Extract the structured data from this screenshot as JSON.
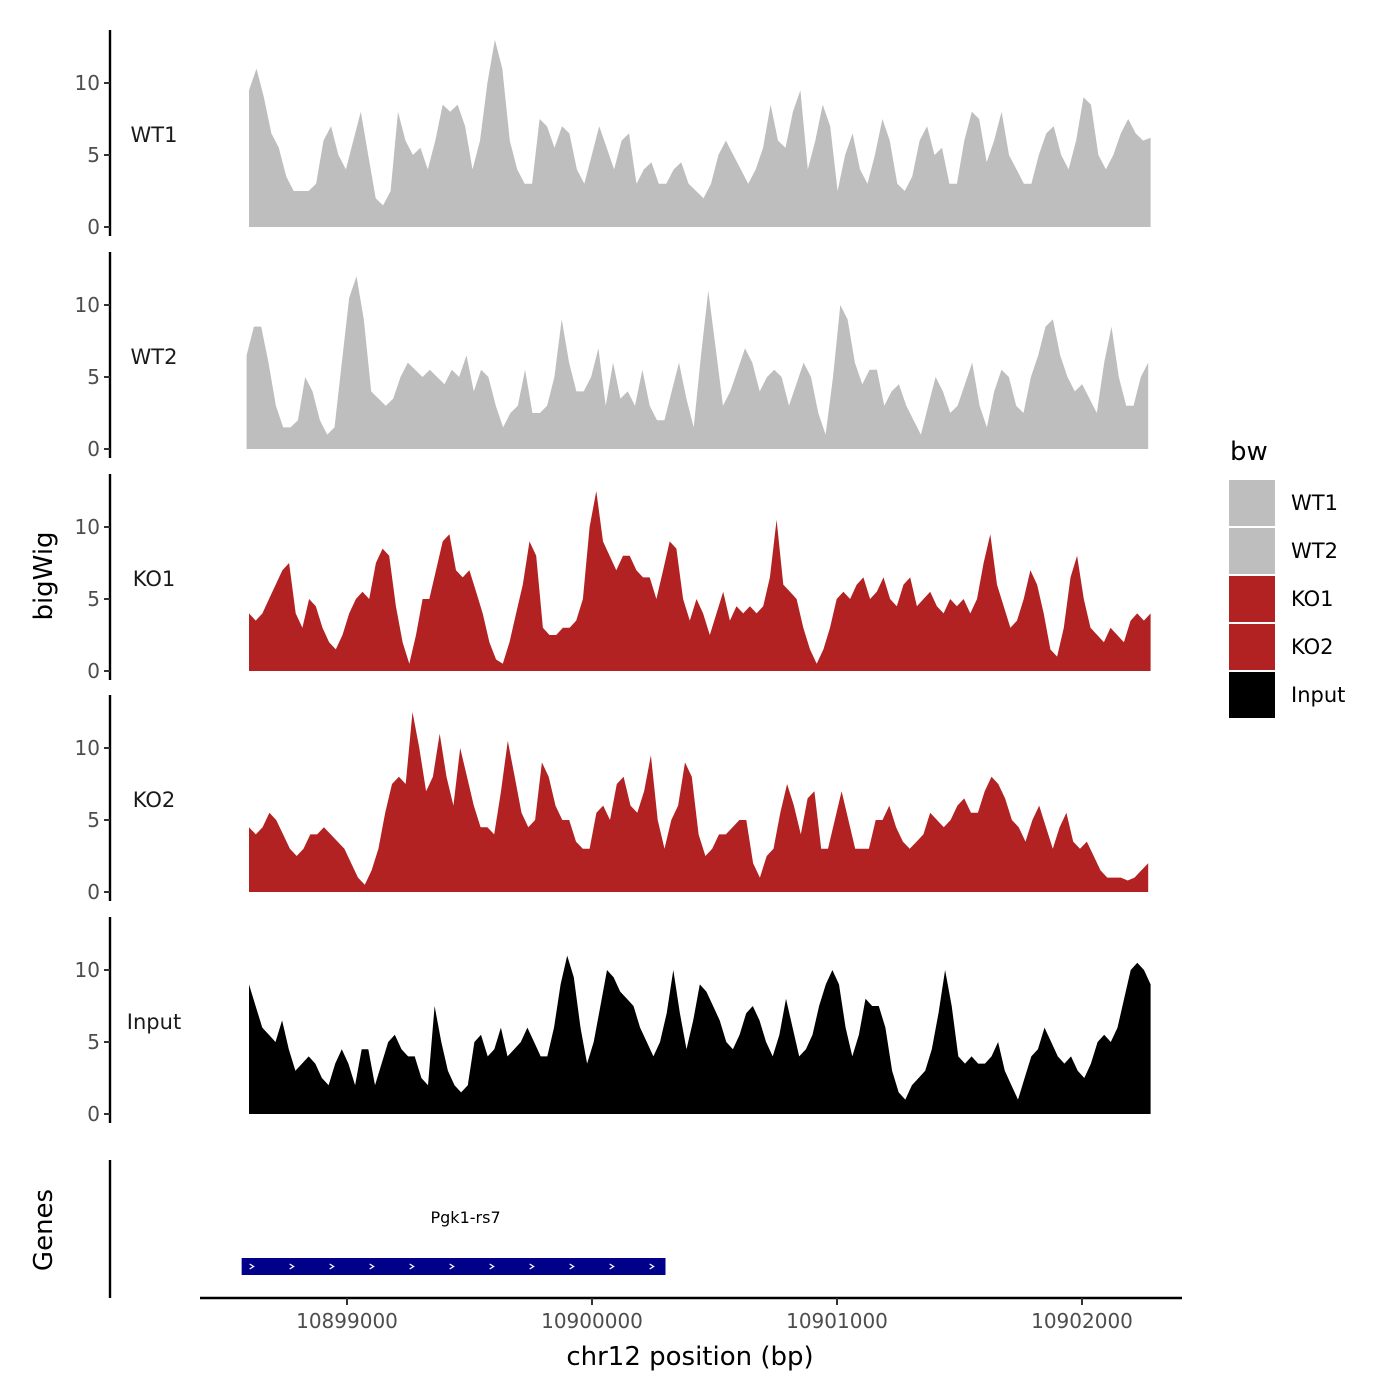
{
  "chart_data": {
    "type": "area",
    "title": "",
    "xlabel": "chr12 position (bp)",
    "ylabel": "bigWig",
    "genes_label": "Genes",
    "xlim": [
      10898400,
      10902400
    ],
    "ylim": [
      0,
      13.5
    ],
    "x_ticks": [
      10899000,
      10900000,
      10901000,
      10902000
    ],
    "x_tick_labels": [
      "10899000",
      "10900000",
      "10901000",
      "10902000"
    ],
    "y_ticks": [
      0,
      5,
      10
    ],
    "y_tick_labels": [
      "0",
      "5",
      "10"
    ],
    "grid": false,
    "legend": {
      "title": "bw",
      "position": "right",
      "entries": [
        {
          "name": "WT1",
          "color": "#bebebe"
        },
        {
          "name": "WT2",
          "color": "#bebebe"
        },
        {
          "name": "KO1",
          "color": "#b22222"
        },
        {
          "name": "KO2",
          "color": "#b22222"
        },
        {
          "name": "Input",
          "color": "#000000"
        }
      ]
    },
    "series": [
      {
        "name": "WT1",
        "color": "#bebebe",
        "x_start": 10898600,
        "x_end": 10902280,
        "values": [
          9.5,
          11,
          9,
          6.5,
          5.5,
          3.5,
          2.5,
          2.5,
          2.5,
          3,
          6,
          7,
          5,
          4,
          6,
          8,
          5,
          2,
          1.5,
          2.5,
          8,
          6,
          5,
          5.5,
          4,
          6,
          8.5,
          8,
          8.5,
          7,
          4,
          6,
          10,
          13,
          11,
          6,
          4,
          3,
          3,
          7.5,
          7,
          5.5,
          7,
          6.5,
          4,
          3,
          5,
          7,
          5.5,
          4,
          6,
          6.5,
          3,
          4,
          4.5,
          3,
          3,
          4,
          4.5,
          3,
          2.5,
          2,
          3,
          5,
          6,
          5,
          4,
          3,
          4,
          5.5,
          8.5,
          6,
          5.5,
          8,
          9.5,
          4,
          6,
          8.5,
          7,
          2.5,
          5,
          6.5,
          4,
          3,
          5,
          7.5,
          6,
          3,
          2.5,
          3.5,
          6,
          7,
          5,
          5.5,
          3,
          3,
          6,
          8,
          7.5,
          4.5,
          6,
          8,
          5,
          4,
          3,
          3,
          5,
          6.5,
          7,
          5,
          4,
          6,
          9,
          8.5,
          5,
          4,
          5,
          6.5,
          7.5,
          6.5,
          6,
          6.2
        ]
      },
      {
        "name": "WT2",
        "color": "#bebebe",
        "x_start": 10898590,
        "x_end": 10902270,
        "values": [
          6.5,
          8.5,
          8.5,
          6,
          3,
          1.5,
          1.5,
          2,
          5,
          4,
          2,
          1,
          1.5,
          6,
          10.5,
          12,
          9,
          4,
          3.5,
          3,
          3.5,
          5,
          6,
          5.5,
          5,
          5.5,
          5,
          4.5,
          5.5,
          5,
          6.5,
          4,
          5.5,
          5,
          3,
          1.5,
          2.5,
          3,
          5.5,
          2.5,
          2.5,
          3,
          5,
          9,
          6,
          4,
          4,
          5,
          7,
          3,
          6,
          3.5,
          4,
          3,
          5.5,
          3,
          2,
          2,
          4,
          6,
          3.5,
          1.5,
          6.5,
          11,
          7,
          3,
          4,
          5.5,
          7,
          6,
          4,
          5,
          5.5,
          5,
          3,
          4.5,
          6,
          5,
          2.5,
          1,
          5,
          10,
          9,
          6,
          4.5,
          5.5,
          5.5,
          3,
          4,
          4.5,
          3,
          2,
          1,
          3,
          5,
          4,
          2.5,
          3,
          4.5,
          6,
          3,
          1.5,
          4,
          5.5,
          5,
          3,
          2.5,
          5,
          6.5,
          8.5,
          9,
          6.5,
          5,
          4,
          4.5,
          3.5,
          2.5,
          6,
          8.5,
          5,
          3,
          3,
          5,
          6
        ]
      },
      {
        "name": "KO1",
        "color": "#b22222",
        "x_start": 10898600,
        "x_end": 10902280,
        "values": [
          4,
          3.5,
          4,
          5,
          6,
          7,
          7.5,
          4,
          3,
          5,
          4.5,
          3,
          2,
          1.5,
          2.5,
          4,
          5,
          5.5,
          5,
          7.5,
          8.5,
          8,
          4.5,
          2,
          0.5,
          2.5,
          5,
          5,
          7,
          9,
          9.5,
          7,
          6.5,
          7,
          5.5,
          4,
          2,
          0.8,
          0.5,
          2,
          4,
          6,
          9,
          8,
          3,
          2.5,
          2.5,
          3,
          3,
          3.5,
          5,
          10,
          12.5,
          9,
          8,
          7,
          8,
          8,
          7,
          6.5,
          6.5,
          5,
          7,
          9,
          8.5,
          5,
          3.5,
          5,
          4,
          2.5,
          4,
          5.5,
          3.5,
          4.5,
          4,
          4.5,
          4,
          4.5,
          6.5,
          10.5,
          6,
          5.5,
          5,
          3,
          1.5,
          0.5,
          1.5,
          3,
          5,
          5.5,
          5,
          6,
          6.5,
          5,
          5.5,
          6.5,
          5,
          4.5,
          6,
          6.5,
          4.5,
          5,
          5.5,
          4.5,
          4,
          5,
          4.5,
          5,
          4,
          5,
          7.5,
          9.5,
          6,
          4.5,
          3,
          3.5,
          5,
          7,
          6,
          4,
          1.5,
          1,
          3,
          6.5,
          8,
          5,
          3,
          2.5,
          2,
          3,
          2.5,
          2,
          3.5,
          4,
          3.5,
          4
        ]
      },
      {
        "name": "KO2",
        "color": "#b22222",
        "x_start": 10898600,
        "x_end": 10902270,
        "values": [
          4.5,
          4,
          4.5,
          5.5,
          5,
          4,
          3,
          2.5,
          3,
          4,
          4,
          4.5,
          4,
          3.5,
          3,
          2,
          1,
          0.5,
          1.5,
          3,
          5.5,
          7.5,
          8,
          7.5,
          12.5,
          10,
          7,
          8,
          11,
          8,
          6,
          10,
          8,
          6,
          4.5,
          4.5,
          4,
          7,
          10.5,
          8,
          5.5,
          4.5,
          5,
          9,
          8,
          6,
          5,
          5,
          3.5,
          3,
          3,
          5.5,
          6,
          5,
          7.5,
          8,
          6,
          5.5,
          7,
          9.5,
          5,
          3,
          5,
          6,
          9,
          8,
          4,
          2.5,
          3,
          4,
          4,
          4.5,
          5,
          5,
          2,
          1,
          2.5,
          3,
          5.5,
          7.5,
          6,
          4,
          6.5,
          7,
          3,
          3,
          5,
          7,
          5,
          3,
          3,
          3,
          5,
          5,
          6,
          4.5,
          3.5,
          3,
          3.5,
          4,
          5.5,
          5,
          4.5,
          5,
          6,
          6.5,
          5.5,
          5.5,
          7,
          8,
          7.5,
          6.5,
          5,
          4.5,
          3.5,
          5,
          6,
          4.5,
          3,
          4.5,
          5.5,
          3.5,
          3,
          3.5,
          2.5,
          1.5,
          1,
          1,
          1,
          0.8,
          1,
          1.5,
          2
        ]
      },
      {
        "name": "Input",
        "color": "#000000",
        "x_start": 10898600,
        "x_end": 10902280,
        "values": [
          9,
          7.5,
          6,
          5.5,
          5,
          6.5,
          4.5,
          3,
          3.5,
          4,
          3.5,
          2.5,
          2,
          3.5,
          4.5,
          3.5,
          2,
          4.5,
          4.5,
          2,
          3.5,
          5,
          5.5,
          4.5,
          4,
          4,
          2.5,
          2,
          7.5,
          5,
          3,
          2,
          1.5,
          2,
          5,
          5.5,
          4,
          4.5,
          6,
          4,
          4.5,
          5,
          6,
          5,
          4,
          4,
          6,
          9,
          11,
          9.5,
          6,
          3.5,
          5,
          7.5,
          10,
          9.5,
          8.5,
          8,
          7.5,
          6,
          5,
          4,
          5,
          7,
          10,
          7,
          4.5,
          6.5,
          9,
          8.5,
          7.5,
          6.5,
          5,
          4.5,
          5.5,
          7,
          7.5,
          6.5,
          5,
          4,
          5.5,
          8,
          6,
          4,
          4.5,
          5.5,
          7.5,
          9,
          10,
          9,
          6,
          4,
          5.5,
          8,
          7.5,
          7.5,
          6,
          3,
          1.5,
          1,
          2,
          2.5,
          3,
          4.5,
          7,
          10,
          7.5,
          4,
          3.5,
          4,
          3.5,
          3.5,
          4,
          5,
          3,
          2,
          1,
          2.5,
          4,
          4.5,
          6,
          5,
          4,
          3.5,
          4,
          3,
          2.5,
          3.5,
          5,
          5.5,
          5,
          6,
          8,
          10,
          10.5,
          10,
          9
        ]
      }
    ],
    "genes": [
      {
        "name": "Pgk1-rs7",
        "start": 10898570,
        "end": 10900300,
        "color": "#00008b"
      }
    ]
  }
}
